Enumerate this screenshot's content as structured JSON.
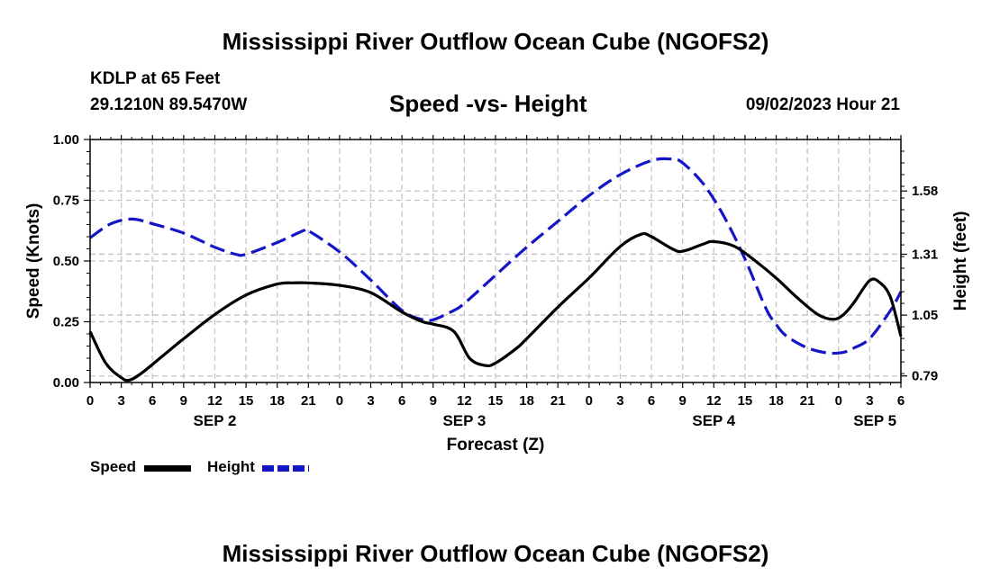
{
  "page": {
    "title_top": "Mississippi River Outflow Ocean Cube (NGOFS2)",
    "title_bottom": "Mississippi River Outflow Ocean Cube (NGOFS2)",
    "station_line": "KDLP at 65 Feet",
    "coords_line": "29.1210N  89.5470W",
    "chart_title": "Speed -vs- Height",
    "date_line": "09/02/2023 Hour 21"
  },
  "legend": {
    "speed_label": "Speed",
    "height_label": "Height"
  },
  "chart_data": {
    "type": "line",
    "title": "Speed -vs- Height",
    "xlabel": "Forecast (Z)",
    "ylabel_left": "Speed (Knots)",
    "ylabel_right": "Height (feet)",
    "x_range": [
      0,
      78
    ],
    "x_unit": "hours from 00Z SEP 2",
    "x_tick_labels": [
      "0",
      "3",
      "6",
      "9",
      "12",
      "15",
      "18",
      "21",
      "0",
      "3",
      "6",
      "9",
      "12",
      "15",
      "18",
      "21",
      "0",
      "3",
      "6",
      "9",
      "12",
      "15",
      "18",
      "21",
      "0",
      "3",
      "6"
    ],
    "day_labels": [
      {
        "label": "SEP 2",
        "x": 12
      },
      {
        "label": "SEP 3",
        "x": 36
      },
      {
        "label": "SEP 4",
        "x": 60
      },
      {
        "label": "SEP 5",
        "x": 75.5
      }
    ],
    "y_left_range": [
      0,
      1.0
    ],
    "y_left_ticks": [
      "0.00",
      "0.25",
      "0.50",
      "0.75",
      "1.00"
    ],
    "y_right_range": [
      0.762,
      1.8
    ],
    "y_right_ticks": [
      "0.79",
      "1.05",
      "1.31",
      "1.58"
    ],
    "grid": true,
    "series": [
      {
        "name": "Speed",
        "axis": "left",
        "color": "#000000",
        "style": "solid",
        "x": [
          0,
          1.5,
          3,
          3.8,
          5,
          7,
          9,
          12,
          15,
          18,
          19.5,
          21,
          24,
          27,
          30,
          32,
          33,
          35,
          36.5,
          38,
          39,
          41,
          42,
          45,
          48,
          51,
          53,
          54,
          56,
          57,
          59,
          60,
          62,
          64,
          66,
          68,
          70,
          71.5,
          72.5,
          73.5,
          75,
          76,
          77,
          78
        ],
        "values": [
          0.21,
          0.08,
          0.02,
          0.01,
          0.04,
          0.11,
          0.18,
          0.28,
          0.36,
          0.405,
          0.41,
          0.41,
          0.4,
          0.37,
          0.29,
          0.25,
          0.24,
          0.21,
          0.1,
          0.07,
          0.08,
          0.14,
          0.18,
          0.31,
          0.43,
          0.56,
          0.61,
          0.6,
          0.55,
          0.54,
          0.57,
          0.58,
          0.56,
          0.5,
          0.43,
          0.35,
          0.28,
          0.26,
          0.28,
          0.33,
          0.42,
          0.41,
          0.35,
          0.19
        ]
      },
      {
        "name": "Height",
        "axis": "right",
        "color": "#1515c8",
        "style": "dashed",
        "x": [
          0,
          2,
          4,
          6,
          9,
          12,
          14,
          15,
          18,
          20.5,
          21,
          24,
          27,
          30,
          32,
          33,
          35,
          36,
          39,
          42,
          45,
          48,
          51,
          54,
          56,
          57,
          59,
          61,
          63,
          65,
          66,
          67,
          69,
          71,
          72.5,
          73.5,
          75,
          77,
          78
        ],
        "values": [
          1.38,
          1.44,
          1.46,
          1.44,
          1.4,
          1.34,
          1.31,
          1.31,
          1.36,
          1.41,
          1.41,
          1.32,
          1.2,
          1.07,
          1.03,
          1.03,
          1.07,
          1.1,
          1.22,
          1.34,
          1.45,
          1.56,
          1.65,
          1.71,
          1.716,
          1.7,
          1.61,
          1.47,
          1.29,
          1.08,
          1.01,
          0.96,
          0.91,
          0.888,
          0.891,
          0.91,
          0.95,
          1.07,
          1.15
        ]
      }
    ]
  }
}
